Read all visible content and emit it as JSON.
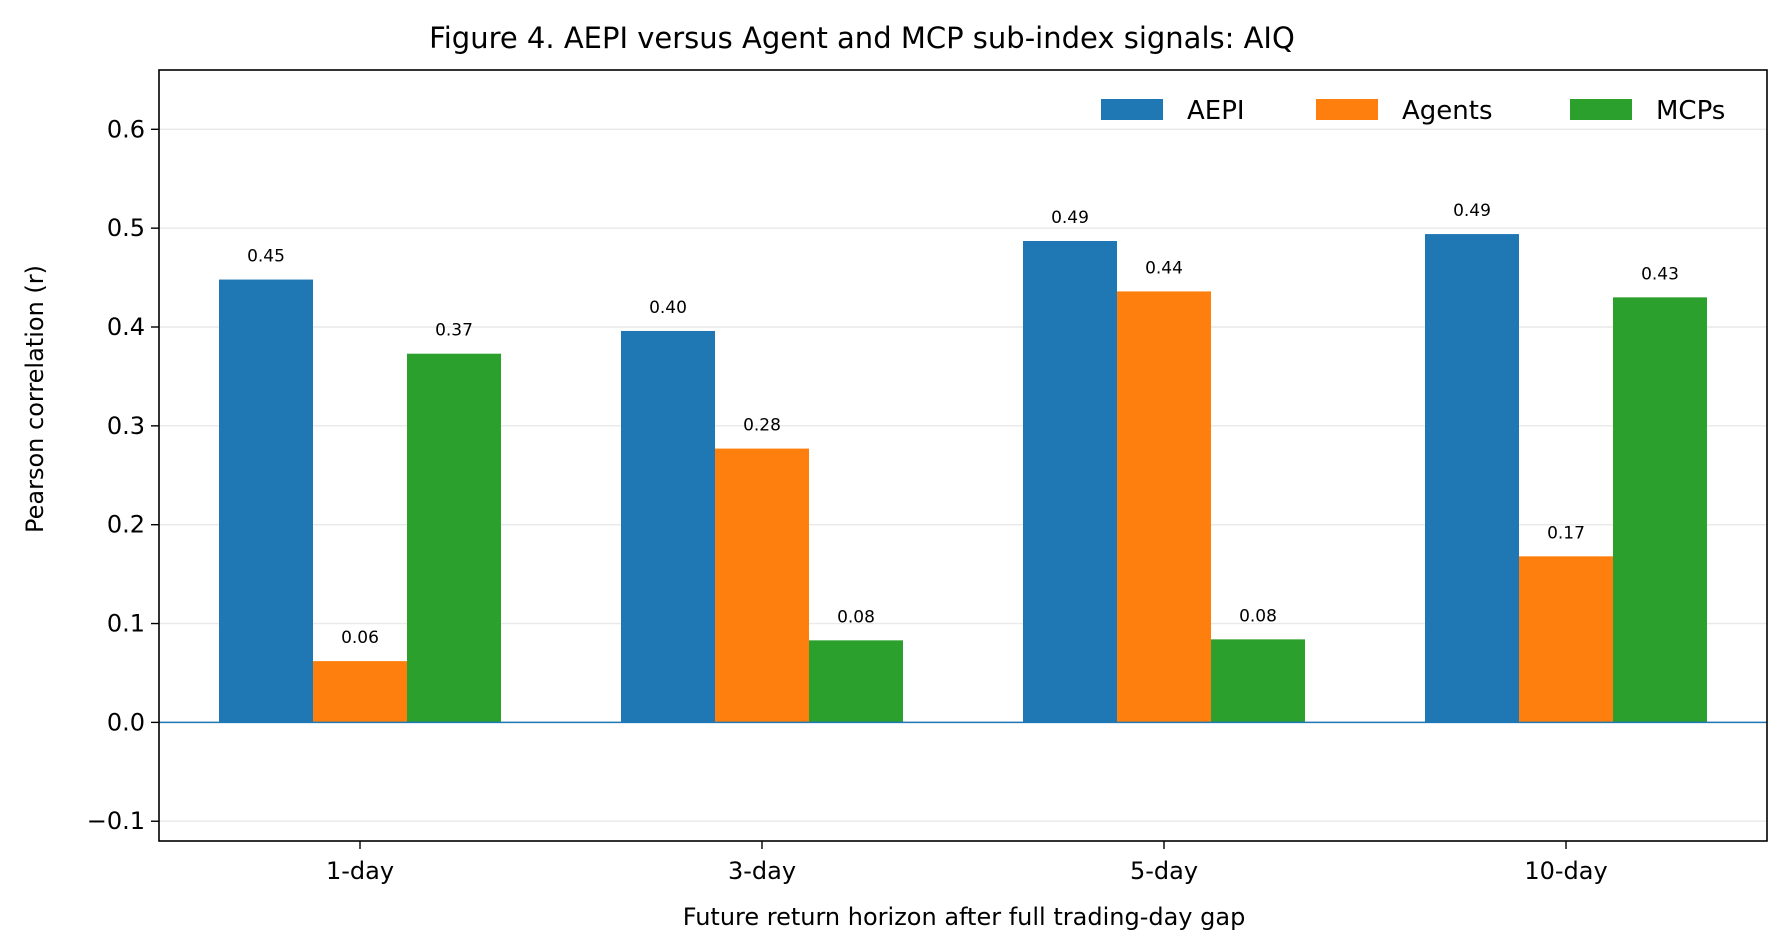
{
  "chart_data": {
    "type": "bar",
    "title": "Figure 4. AEPI versus Agent and MCP sub-index signals: AIQ",
    "xlabel": "Future return horizon after full trading-day gap",
    "ylabel": "Pearson correlation (r)",
    "categories": [
      "1-day",
      "3-day",
      "5-day",
      "10-day"
    ],
    "ylim": [
      -0.12,
      0.66
    ],
    "yticks": [
      -0.1,
      0.0,
      0.1,
      0.2,
      0.3,
      0.4,
      0.5,
      0.6
    ],
    "ytick_labels": [
      "−0.1",
      "0.0",
      "0.1",
      "0.2",
      "0.3",
      "0.4",
      "0.5",
      "0.6"
    ],
    "grid": "horizontal",
    "legend_position": "top-right",
    "zero_line_color": "#1f77b4",
    "series": [
      {
        "name": "AEPI",
        "color": "#1f77b4",
        "values": [
          0.448,
          0.396,
          0.487,
          0.494
        ],
        "labels": [
          "0.45",
          "0.40",
          "0.49",
          "0.49"
        ]
      },
      {
        "name": "Agents",
        "color": "#ff7f0e",
        "values": [
          0.062,
          0.277,
          0.436,
          0.168
        ],
        "labels": [
          "0.06",
          "0.28",
          "0.44",
          "0.17"
        ]
      },
      {
        "name": "MCPs",
        "color": "#2ca02c",
        "values": [
          0.373,
          0.083,
          0.084,
          0.43
        ],
        "labels": [
          "0.37",
          "0.08",
          "0.08",
          "0.43"
        ]
      }
    ]
  }
}
